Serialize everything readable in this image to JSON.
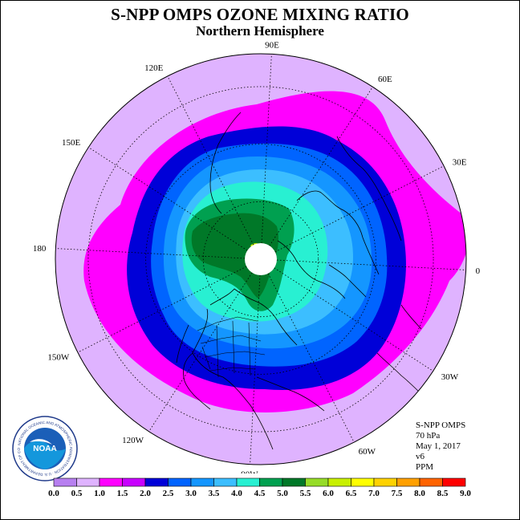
{
  "title": "S-NPP OMPS OZONE MIXING RATIO",
  "subtitle": "Northern Hemisphere",
  "longitude_labels": [
    {
      "text": "90E",
      "deg": 90
    },
    {
      "text": "60E",
      "deg": 60
    },
    {
      "text": "30E",
      "deg": 30
    },
    {
      "text": "0",
      "deg": 0
    },
    {
      "text": "30W",
      "deg": -30
    },
    {
      "text": "60W",
      "deg": -60
    },
    {
      "text": "90W",
      "deg": -90
    },
    {
      "text": "120W",
      "deg": -120
    },
    {
      "text": "150W",
      "deg": -150
    },
    {
      "text": "180",
      "deg": 180
    },
    {
      "text": "150E",
      "deg": 150
    },
    {
      "text": "120E",
      "deg": 120
    }
  ],
  "info": {
    "instrument": "S-NPP OMPS",
    "level": "70 hPa",
    "date": "May 1, 2017",
    "version": "v6",
    "units": "PPM"
  },
  "logo": {
    "text": "NOAA",
    "ring_text": "NATIONAL OCEANIC AND ATMOSPHERIC ADMINISTRATION · U.S. DEPARTMENT OF COMMERCE"
  },
  "colorbar": {
    "labels": [
      "0.0",
      "0.5",
      "1.0",
      "1.5",
      "2.0",
      "2.5",
      "3.0",
      "3.5",
      "4.0",
      "4.5",
      "5.0",
      "5.5",
      "6.0",
      "6.5",
      "7.0",
      "7.5",
      "8.0",
      "8.5",
      "9.0"
    ],
    "colors": [
      "#b77ff0",
      "#dfb3ff",
      "#ff00ff",
      "#c800ff",
      "#0000d8",
      "#0064ff",
      "#1496ff",
      "#3cbeff",
      "#28f0d2",
      "#00a050",
      "#007828",
      "#96dc28",
      "#c8f000",
      "#ffff00",
      "#ffd200",
      "#ffa000",
      "#ff6400",
      "#ff0000",
      "#8c5a3c"
    ]
  },
  "map_data": {
    "projection": "north polar stereographic",
    "contour_levels_ppm": [
      {
        "level": "0.5-1.0",
        "color": "#dfb3ff"
      },
      {
        "level": "1.0-1.5",
        "color": "#ff00ff"
      },
      {
        "level": "1.5-2.0",
        "color": "#0000d8"
      },
      {
        "level": "2.0-2.5",
        "color": "#0064ff"
      },
      {
        "level": "2.5-3.0",
        "color": "#1496ff"
      },
      {
        "level": "3.0-3.5",
        "color": "#3cbeff"
      },
      {
        "level": "3.5-4.0",
        "color": "#28f0d2"
      },
      {
        "level": "4.0-4.5",
        "color": "#00a050"
      },
      {
        "level": "4.5-5.0",
        "color": "#007828"
      }
    ],
    "pole_no_data": true
  }
}
